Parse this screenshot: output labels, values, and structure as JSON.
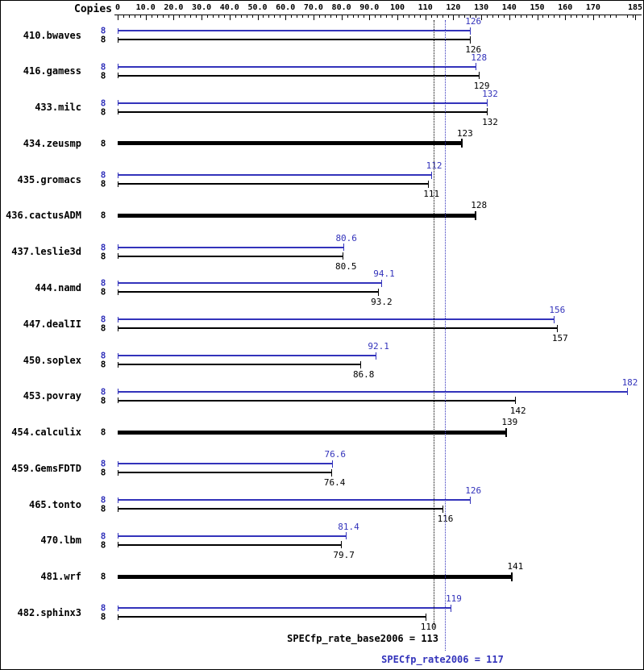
{
  "chart_data": {
    "type": "bar",
    "orientation": "horizontal",
    "grid": false,
    "xlim": [
      0,
      185
    ],
    "axis": {
      "label": "Copies",
      "min": 0,
      "max": 185,
      "minor_tick_step": 2,
      "major_ticks": [
        {
          "value": 0,
          "label": "0"
        },
        {
          "value": 10,
          "label": "10.0"
        },
        {
          "value": 20,
          "label": "20.0"
        },
        {
          "value": 30,
          "label": "30.0"
        },
        {
          "value": 40,
          "label": "40.0"
        },
        {
          "value": 50,
          "label": "50.0"
        },
        {
          "value": 60,
          "label": "60.0"
        },
        {
          "value": 70,
          "label": "70.0"
        },
        {
          "value": 80,
          "label": "80.0"
        },
        {
          "value": 90,
          "label": "90.0"
        },
        {
          "value": 100,
          "label": "100"
        },
        {
          "value": 110,
          "label": "110"
        },
        {
          "value": 120,
          "label": "120"
        },
        {
          "value": 130,
          "label": "130"
        },
        {
          "value": 140,
          "label": "140"
        },
        {
          "value": 150,
          "label": "150"
        },
        {
          "value": 160,
          "label": "160"
        },
        {
          "value": 170,
          "label": "170"
        },
        {
          "value": 185,
          "label": "185"
        }
      ]
    },
    "series_colors": {
      "peak": "#3333bb",
      "base": "#000000"
    },
    "benchmarks": [
      {
        "name": "410.bwaves",
        "copies": "8",
        "peak": 126,
        "peak_label": "126",
        "base": 126,
        "base_label": "126",
        "single": false
      },
      {
        "name": "416.gamess",
        "copies": "8",
        "peak": 128,
        "peak_label": "128",
        "base": 129,
        "base_label": "129",
        "single": false
      },
      {
        "name": "433.milc",
        "copies": "8",
        "peak": 132,
        "peak_label": "132",
        "base": 132,
        "base_label": "132",
        "single": false
      },
      {
        "name": "434.zeusmp",
        "copies": "8",
        "base": 123,
        "base_label": "123",
        "single": true
      },
      {
        "name": "435.gromacs",
        "copies": "8",
        "peak": 112,
        "peak_label": "112",
        "base": 111,
        "base_label": "111",
        "single": false
      },
      {
        "name": "436.cactusADM",
        "copies": "8",
        "base": 128,
        "base_label": "128",
        "single": true
      },
      {
        "name": "437.leslie3d",
        "copies": "8",
        "peak": 80.6,
        "peak_label": "80.6",
        "base": 80.5,
        "base_label": "80.5",
        "single": false
      },
      {
        "name": "444.namd",
        "copies": "8",
        "peak": 94.1,
        "peak_label": "94.1",
        "base": 93.2,
        "base_label": "93.2",
        "single": false
      },
      {
        "name": "447.dealII",
        "copies": "8",
        "peak": 156,
        "peak_label": "156",
        "base": 157,
        "base_label": "157",
        "single": false
      },
      {
        "name": "450.soplex",
        "copies": "8",
        "peak": 92.1,
        "peak_label": "92.1",
        "base": 86.8,
        "base_label": "86.8",
        "single": false
      },
      {
        "name": "453.povray",
        "copies": "8",
        "peak": 182,
        "peak_label": "182",
        "base": 142,
        "base_label": "142",
        "single": false
      },
      {
        "name": "454.calculix",
        "copies": "8",
        "base": 139,
        "base_label": "139",
        "single": true
      },
      {
        "name": "459.GemsFDTD",
        "copies": "8",
        "peak": 76.6,
        "peak_label": "76.6",
        "base": 76.4,
        "base_label": "76.4",
        "single": false
      },
      {
        "name": "465.tonto",
        "copies": "8",
        "peak": 126,
        "peak_label": "126",
        "base": 116,
        "base_label": "116",
        "single": false
      },
      {
        "name": "470.lbm",
        "copies": "8",
        "peak": 81.4,
        "peak_label": "81.4",
        "base": 79.7,
        "base_label": "79.7",
        "single": false
      },
      {
        "name": "481.wrf",
        "copies": "8",
        "base": 141,
        "base_label": "141",
        "single": true
      },
      {
        "name": "482.sphinx3",
        "copies": "8",
        "peak": 119,
        "peak_label": "119",
        "base": 110,
        "base_label": "110",
        "single": false
      }
    ],
    "means": {
      "base": {
        "value": 113,
        "label": "SPECfp_rate_base2006 = 113",
        "color": "#000000"
      },
      "peak": {
        "value": 117,
        "label": "SPECfp_rate2006 = 117",
        "color": "#3333bb"
      }
    }
  }
}
